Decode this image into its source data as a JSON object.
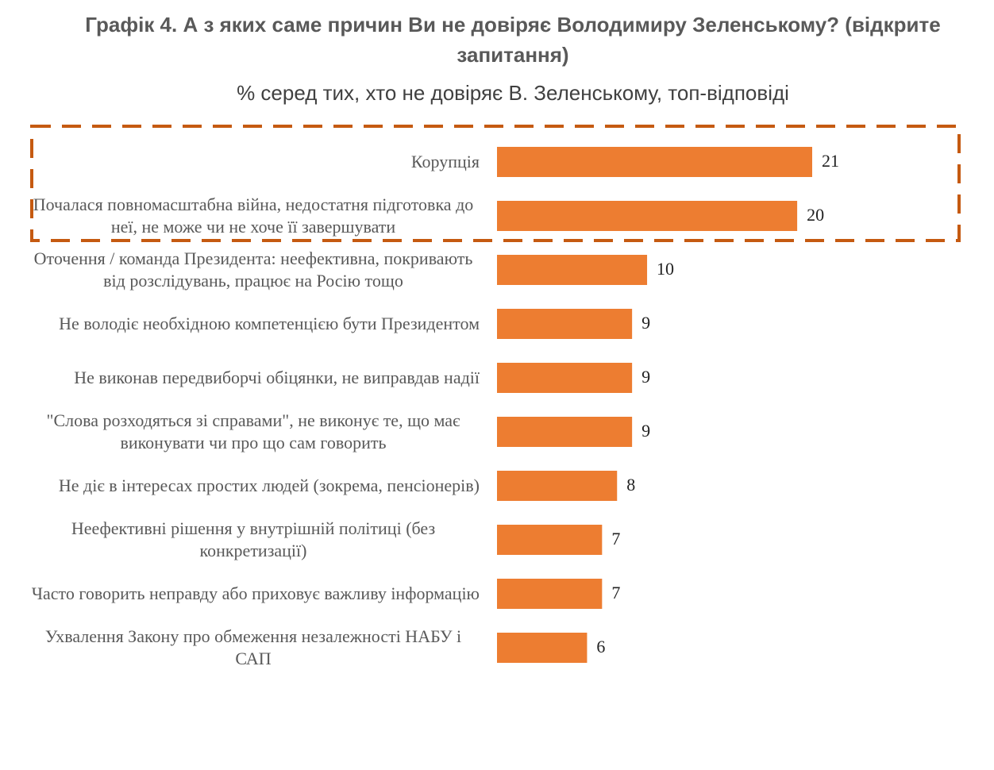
{
  "chart_data": {
    "type": "bar",
    "orientation": "horizontal",
    "title": "Графік 4. А з яких саме причин Ви не довіряє Володимиру Зеленському? (відкрите запитання)",
    "subtitle": "% серед тих, хто не довіряє В. Зеленському, топ-відповіді",
    "categories": [
      "Корупція",
      "Почалася повномасштабна війна, недостатня підготовка до неї, не може чи не хоче її завершувати",
      "Оточення / команда Президента: неефективна, покривають від розслідувань, працює на Росію тощо",
      "Не володіє необхідною компетенцією бути Президентом",
      "Не виконав передвиборчі обіцянки, не виправдав надії",
      "\"Слова розходяться зі справами\", не виконує те, що має виконувати чи про що сам говорить",
      "Не діє в інтересах простих людей (зокрема, пенсіонерів)",
      "Неефективні рішення у внутрішній політиці (без конкретизації)",
      "Часто говорить неправду або приховує важливу інформацію",
      "Ухвалення Закону про обмеження незалежності НАБУ і САП"
    ],
    "values": [
      21,
      20,
      10,
      9,
      9,
      9,
      8,
      7,
      7,
      6
    ],
    "color": "#ed7d31"
  }
}
